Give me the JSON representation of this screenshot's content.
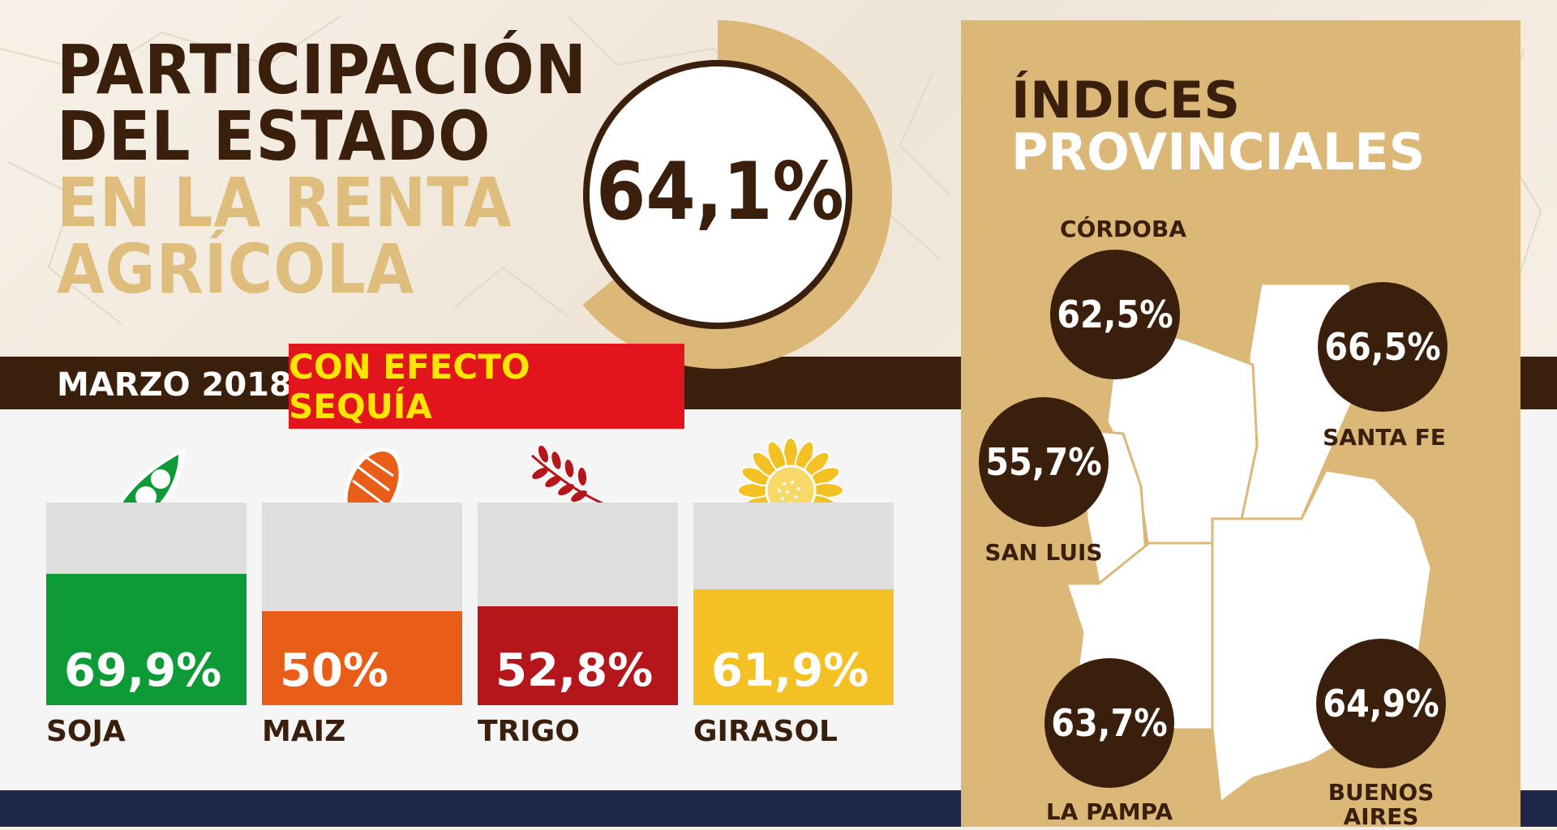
{
  "title": {
    "line1": "PARTICIPACIÓN",
    "line2": "DEL ESTADO",
    "line3": "EN LA RENTA",
    "line4": "AGRÍCOLA"
  },
  "date": "MARZO 2018",
  "drought_label": "CON EFECTO SEQUÍA",
  "total": {
    "label": "64,1%",
    "value": 64.1
  },
  "panel": {
    "title_line1": "ÍNDICES",
    "title_line2": "PROVINCIALES"
  },
  "colors": {
    "brown": "#3a1f0c",
    "gold": "#dcb878",
    "red": "#e2141c",
    "yellow": "#ffe600"
  },
  "chart_data": [
    {
      "type": "bar",
      "categories": [
        "SOJA",
        "MAIZ",
        "TRIGO",
        "GIRASOL"
      ],
      "values": [
        69.9,
        50,
        52.8,
        61.9
      ],
      "value_labels": [
        "69,9%",
        "50%",
        "52,8%",
        "61,9%"
      ],
      "colors": [
        "#0f9a38",
        "#e85e18",
        "#b5161b",
        "#f4c124"
      ],
      "icons": [
        "soybean-pod-icon",
        "corn-cob-icon",
        "wheat-stalk-icon",
        "sunflower-icon"
      ],
      "ylim": [
        0,
        100
      ]
    },
    {
      "type": "map",
      "regions": [
        {
          "name": "CÓRDOBA",
          "value": 62.5,
          "label": "62,5%"
        },
        {
          "name": "SANTA FE",
          "value": 66.5,
          "label": "66,5%"
        },
        {
          "name": "SAN LUIS",
          "value": 55.7,
          "label": "55,7%"
        },
        {
          "name": "LA PAMPA",
          "value": 63.7,
          "label": "63,7%"
        },
        {
          "name": "BUENOS AIRES",
          "value": 64.9,
          "label": "64,9%"
        }
      ]
    }
  ]
}
